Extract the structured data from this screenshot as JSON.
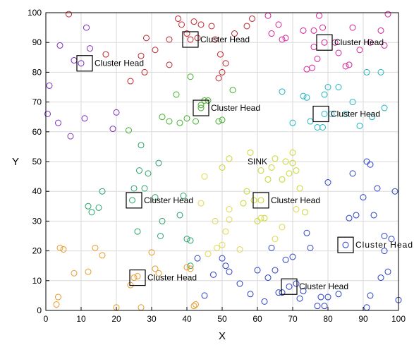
{
  "chart_data": {
    "type": "scatter",
    "title": "",
    "xlabel": "X",
    "ylabel": "Y",
    "xlim": [
      0,
      100
    ],
    "ylim": [
      0,
      100
    ],
    "xticks": [
      0,
      10,
      20,
      30,
      40,
      50,
      60,
      70,
      80,
      90,
      100
    ],
    "yticks": [
      0,
      10,
      20,
      30,
      40,
      50,
      60,
      70,
      80,
      90,
      100
    ],
    "grid": true,
    "sink": {
      "label": "SINK",
      "x": 60,
      "y": 50
    },
    "cluster_heads": [
      {
        "label": "Cluster Head",
        "x": 11,
        "y": 83
      },
      {
        "label": "Cluster Head",
        "x": 41,
        "y": 91
      },
      {
        "label": "Cluster Head",
        "x": 79,
        "y": 90
      },
      {
        "label": "Cluster Head",
        "x": 44,
        "y": 68
      },
      {
        "label": "Cluster Head",
        "x": 78,
        "y": 66
      },
      {
        "label": "Cluster Head",
        "x": 25,
        "y": 37
      },
      {
        "label": "Cluster Head",
        "x": 61,
        "y": 37
      },
      {
        "label": "Cluster Head",
        "x": 85,
        "y": 22
      },
      {
        "label": "Cluster Head",
        "x": 26,
        "y": 11
      },
      {
        "label": "Cluster Head",
        "x": 69,
        "y": 8
      }
    ],
    "series": [
      {
        "color": "#7b2fbe",
        "points": [
          [
            0.5,
            66
          ],
          [
            1,
            75.5
          ],
          [
            4,
            89
          ],
          [
            3.5,
            63
          ],
          [
            7,
            58.5
          ],
          [
            8,
            84
          ],
          [
            11,
            64.5
          ],
          [
            11.5,
            95
          ],
          [
            12.5,
            88
          ],
          [
            19,
            61
          ],
          [
            20,
            66.5
          ],
          [
            10,
            83
          ]
        ]
      },
      {
        "color": "#c0232b",
        "points": [
          [
            6.5,
            99.5
          ],
          [
            17,
            86
          ],
          [
            24,
            77
          ],
          [
            27,
            85.5
          ],
          [
            28,
            80
          ],
          [
            28.5,
            91.5
          ],
          [
            31,
            87.5
          ],
          [
            35,
            82.5
          ],
          [
            35,
            91
          ],
          [
            37.5,
            98
          ],
          [
            38.5,
            96
          ],
          [
            40,
            93
          ],
          [
            41,
            91
          ],
          [
            42,
            97
          ],
          [
            43,
            91.5
          ],
          [
            44,
            96
          ],
          [
            47,
            95.5
          ],
          [
            48,
            91
          ],
          [
            49,
            78
          ],
          [
            49.5,
            86
          ],
          [
            50,
            80
          ],
          [
            51,
            83
          ],
          [
            53.5,
            93
          ],
          [
            57,
            95.5
          ],
          [
            58.5,
            98
          ]
        ]
      },
      {
        "color": "#d6229a",
        "points": [
          [
            63,
            99
          ],
          [
            64,
            93
          ],
          [
            66,
            96
          ],
          [
            67,
            91
          ],
          [
            68,
            91.5
          ],
          [
            73,
            94
          ],
          [
            74,
            81
          ],
          [
            75.5,
            81.5
          ],
          [
            76,
            88.5
          ],
          [
            76,
            94
          ],
          [
            77,
            84.5
          ],
          [
            77.5,
            99
          ],
          [
            78.5,
            95
          ],
          [
            79,
            90
          ],
          [
            82,
            90
          ],
          [
            83,
            86.5
          ],
          [
            85,
            82
          ],
          [
            86,
            82.5
          ],
          [
            87,
            95
          ],
          [
            89,
            87.5
          ],
          [
            92,
            90
          ],
          [
            95,
            94
          ],
          [
            96,
            89
          ],
          [
            97,
            99.5
          ]
        ]
      },
      {
        "color": "#43b02a",
        "points": [
          [
            23.5,
            60.5
          ],
          [
            33,
            65
          ],
          [
            35,
            63.5
          ],
          [
            37,
            72.5
          ],
          [
            38,
            63
          ],
          [
            40,
            64.5
          ],
          [
            41,
            78.5
          ],
          [
            42.5,
            63.5
          ],
          [
            44,
            68
          ],
          [
            44,
            69
          ],
          [
            45,
            70.5
          ],
          [
            46,
            70.5
          ],
          [
            49,
            63.5
          ],
          [
            50,
            64
          ],
          [
            53,
            74
          ]
        ]
      },
      {
        "color": "#1fb5c2",
        "points": [
          [
            67,
            73.5
          ],
          [
            70,
            63
          ],
          [
            73,
            72
          ],
          [
            74,
            71.5
          ],
          [
            75,
            63.5
          ],
          [
            77,
            61.5
          ],
          [
            78.5,
            61.5
          ],
          [
            79,
            66
          ],
          [
            79,
            72.5
          ],
          [
            80,
            75
          ],
          [
            81,
            66
          ],
          [
            83,
            75
          ],
          [
            85,
            66
          ],
          [
            87,
            70
          ],
          [
            89,
            62
          ],
          [
            91,
            80
          ],
          [
            92.5,
            65
          ],
          [
            95,
            80
          ],
          [
            96,
            68
          ]
        ]
      },
      {
        "color": "#c9d62a",
        "points": [
          [
            50,
            48
          ],
          [
            52,
            51
          ],
          [
            56,
            36
          ],
          [
            57,
            40
          ],
          [
            58,
            53
          ],
          [
            59,
            37
          ],
          [
            60,
            30
          ],
          [
            61,
            37
          ],
          [
            61,
            47
          ],
          [
            62,
            31
          ],
          [
            63,
            44
          ],
          [
            64,
            48
          ],
          [
            65,
            51
          ],
          [
            67,
            44
          ],
          [
            68,
            50
          ],
          [
            69,
            46
          ],
          [
            70,
            53
          ],
          [
            70,
            49.5
          ],
          [
            71,
            47
          ],
          [
            72,
            41
          ],
          [
            73.5,
            33
          ]
        ]
      },
      {
        "color": "#27a36b",
        "points": [
          [
            12,
            35
          ],
          [
            13,
            33
          ],
          [
            15,
            34.5
          ],
          [
            16,
            40
          ],
          [
            24.5,
            37
          ],
          [
            25,
            41
          ],
          [
            26,
            26.5
          ],
          [
            26.5,
            47
          ],
          [
            27,
            55.5
          ],
          [
            28,
            41
          ],
          [
            29,
            46
          ],
          [
            31,
            38
          ],
          [
            32,
            49.5
          ],
          [
            32.5,
            25
          ],
          [
            33,
            30
          ],
          [
            38,
            32
          ],
          [
            39,
            38.5
          ],
          [
            40,
            24
          ],
          [
            41,
            23.5
          ],
          [
            41,
            15
          ]
        ]
      },
      {
        "color": "#e0d84a",
        "points": [
          [
            44,
            36
          ],
          [
            45,
            45
          ],
          [
            46,
            19
          ],
          [
            48,
            30
          ],
          [
            48.5,
            21
          ],
          [
            50,
            22
          ],
          [
            51,
            26.5
          ],
          [
            52,
            30.5
          ],
          [
            52,
            34
          ],
          [
            55,
            20.5
          ],
          [
            61,
            31
          ],
          [
            65,
            24
          ],
          [
            67,
            28
          ],
          [
            71,
            34
          ]
        ]
      },
      {
        "color": "#2a3fc5",
        "points": [
          [
            43,
            17.5
          ],
          [
            45,
            5
          ],
          [
            47.5,
            12
          ],
          [
            50,
            17.5
          ],
          [
            51,
            15
          ],
          [
            52,
            13
          ],
          [
            55,
            9
          ],
          [
            58,
            5.5
          ],
          [
            60,
            13.5
          ],
          [
            62,
            3
          ],
          [
            63,
            11
          ],
          [
            64,
            21
          ],
          [
            65,
            13.5
          ],
          [
            66,
            6
          ],
          [
            67,
            6
          ],
          [
            68,
            17
          ],
          [
            69,
            8
          ],
          [
            70,
            18
          ],
          [
            71,
            9
          ],
          [
            72,
            4
          ],
          [
            73,
            6.5
          ],
          [
            74,
            26
          ],
          [
            75,
            21
          ],
          [
            77,
            1.5
          ],
          [
            78,
            4.5
          ],
          [
            79,
            1.5
          ],
          [
            80,
            4.5
          ],
          [
            80,
            43
          ],
          [
            83,
            5.5
          ],
          [
            85,
            22
          ],
          [
            86,
            31
          ],
          [
            87,
            46
          ],
          [
            88,
            32
          ],
          [
            90,
            38
          ],
          [
            91,
            1
          ],
          [
            92,
            5
          ],
          [
            93,
            32
          ],
          [
            94,
            41
          ],
          [
            95,
            11
          ],
          [
            96,
            20
          ],
          [
            96,
            25
          ],
          [
            97,
            13
          ],
          [
            98,
            24
          ],
          [
            99,
            40
          ],
          [
            100,
            3.5
          ],
          [
            91,
            50
          ],
          [
            92,
            49
          ]
        ]
      },
      {
        "color": "#e89a26",
        "points": [
          [
            3,
            2
          ],
          [
            3.5,
            4.5
          ],
          [
            4,
            21
          ],
          [
            5,
            20.5
          ],
          [
            8,
            12.5
          ],
          [
            12,
            13
          ],
          [
            14,
            21
          ],
          [
            16,
            18.5
          ],
          [
            20,
            1
          ],
          [
            24,
            8.5
          ],
          [
            25,
            11
          ],
          [
            26,
            11.5
          ],
          [
            27,
            1
          ],
          [
            30,
            19.5
          ],
          [
            31,
            14
          ],
          [
            32,
            12.5
          ],
          [
            40,
            14.5
          ],
          [
            41,
            14
          ],
          [
            42,
            1.5
          ],
          [
            42.5,
            2
          ]
        ]
      }
    ]
  }
}
